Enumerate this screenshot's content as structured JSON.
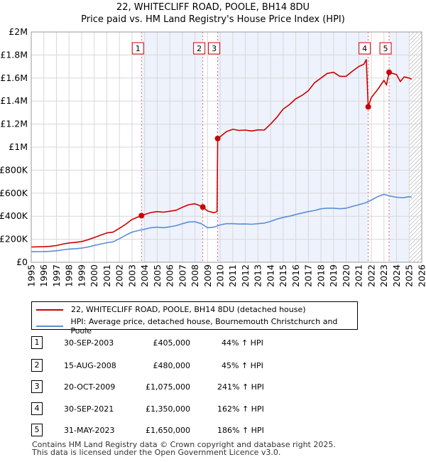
{
  "chart_data": {
    "type": "line",
    "title": "22, WHITECLIFF ROAD, POOLE, BH14 8DU",
    "subtitle": "Price paid vs. HM Land Registry's House Price Index (HPI)",
    "xlim": [
      1995,
      2026
    ],
    "ylim": [
      0,
      2000000
    ],
    "y_ticks": [
      0,
      200000,
      400000,
      600000,
      800000,
      1000000,
      1200000,
      1400000,
      1600000,
      1800000,
      2000000
    ],
    "y_tick_labels": [
      "£0",
      "£200K",
      "£400K",
      "£600K",
      "£800K",
      "£1M",
      "£1.2M",
      "£1.4M",
      "£1.6M",
      "£1.8M",
      "£2M"
    ],
    "x_ticks": [
      1995,
      1996,
      1997,
      1998,
      1999,
      2000,
      2001,
      2002,
      2003,
      2004,
      2005,
      2006,
      2007,
      2008,
      2009,
      2010,
      2011,
      2012,
      2013,
      2014,
      2015,
      2016,
      2017,
      2018,
      2019,
      2020,
      2021,
      2022,
      2023,
      2024,
      2025,
      2026
    ],
    "x_tick_labels": [
      "1995",
      "1996",
      "1997",
      "1998",
      "1999",
      "2000",
      "2001",
      "2002",
      "2003",
      "2004",
      "2005",
      "2006",
      "2007",
      "2008",
      "2009",
      "2010",
      "2011",
      "2012",
      "2013",
      "2014",
      "2015",
      "2016",
      "2017",
      "2018",
      "2019",
      "2020",
      "2021",
      "2022",
      "2023",
      "2024",
      "2025",
      "2026"
    ],
    "grid": true,
    "shaded_ranges": [
      [
        2003.75,
        2008.62
      ],
      [
        2009.8,
        2021.75
      ],
      [
        2023.41,
        2025.0
      ]
    ],
    "hatched_from": 2025.0,
    "series": [
      {
        "name": "22, WHITECLIFF ROAD, POOLE, BH14 8DU (detached house)",
        "color": "#cc0000",
        "points": [
          [
            1995.0,
            133000
          ],
          [
            1996.0,
            135000
          ],
          [
            1996.5,
            138000
          ],
          [
            1997.0,
            145000
          ],
          [
            1997.5,
            158000
          ],
          [
            1998.0,
            168000
          ],
          [
            1998.5,
            172000
          ],
          [
            1999.0,
            180000
          ],
          [
            1999.5,
            195000
          ],
          [
            2000.0,
            215000
          ],
          [
            2000.5,
            235000
          ],
          [
            2001.0,
            255000
          ],
          [
            2001.5,
            262000
          ],
          [
            2002.0,
            295000
          ],
          [
            2002.5,
            330000
          ],
          [
            2003.0,
            372000
          ],
          [
            2003.75,
            405000
          ],
          [
            2004.0,
            415000
          ],
          [
            2004.5,
            432000
          ],
          [
            2005.0,
            440000
          ],
          [
            2005.5,
            435000
          ],
          [
            2006.0,
            443000
          ],
          [
            2006.5,
            452000
          ],
          [
            2007.0,
            478000
          ],
          [
            2007.5,
            500000
          ],
          [
            2008.0,
            508000
          ],
          [
            2008.3,
            495000
          ],
          [
            2008.62,
            480000
          ],
          [
            2009.0,
            445000
          ],
          [
            2009.5,
            430000
          ],
          [
            2009.75,
            440000
          ],
          [
            2009.8,
            1075000
          ],
          [
            2010.0,
            1090000
          ],
          [
            2010.5,
            1135000
          ],
          [
            2011.0,
            1155000
          ],
          [
            2011.5,
            1145000
          ],
          [
            2012.0,
            1148000
          ],
          [
            2012.5,
            1140000
          ],
          [
            2013.0,
            1150000
          ],
          [
            2013.5,
            1148000
          ],
          [
            2014.0,
            1200000
          ],
          [
            2014.5,
            1260000
          ],
          [
            2015.0,
            1330000
          ],
          [
            2015.5,
            1370000
          ],
          [
            2016.0,
            1420000
          ],
          [
            2016.5,
            1450000
          ],
          [
            2017.0,
            1490000
          ],
          [
            2017.5,
            1560000
          ],
          [
            2018.0,
            1600000
          ],
          [
            2018.5,
            1640000
          ],
          [
            2019.0,
            1650000
          ],
          [
            2019.5,
            1615000
          ],
          [
            2020.0,
            1615000
          ],
          [
            2020.5,
            1660000
          ],
          [
            2021.0,
            1700000
          ],
          [
            2021.4,
            1720000
          ],
          [
            2021.6,
            1760000
          ],
          [
            2021.75,
            1350000
          ],
          [
            2022.0,
            1430000
          ],
          [
            2022.5,
            1500000
          ],
          [
            2023.0,
            1580000
          ],
          [
            2023.2,
            1540000
          ],
          [
            2023.41,
            1650000
          ],
          [
            2023.7,
            1640000
          ],
          [
            2024.0,
            1630000
          ],
          [
            2024.3,
            1570000
          ],
          [
            2024.6,
            1610000
          ],
          [
            2025.0,
            1600000
          ],
          [
            2025.2,
            1590000
          ]
        ]
      },
      {
        "name": "HPI: Average price, detached house, Bournemouth Christchurch and Poole",
        "color": "#5b8dd6",
        "points": [
          [
            1995.0,
            92000
          ],
          [
            1996.0,
            93000
          ],
          [
            1996.5,
            95000
          ],
          [
            1997.0,
            100000
          ],
          [
            1997.5,
            108000
          ],
          [
            1998.0,
            115000
          ],
          [
            1998.5,
            118000
          ],
          [
            1999.0,
            123000
          ],
          [
            1999.5,
            132000
          ],
          [
            2000.0,
            146000
          ],
          [
            2000.5,
            158000
          ],
          [
            2001.0,
            170000
          ],
          [
            2001.5,
            178000
          ],
          [
            2002.0,
            205000
          ],
          [
            2002.5,
            235000
          ],
          [
            2003.0,
            262000
          ],
          [
            2003.5,
            275000
          ],
          [
            2004.0,
            287000
          ],
          [
            2004.5,
            300000
          ],
          [
            2005.0,
            305000
          ],
          [
            2005.5,
            300000
          ],
          [
            2006.0,
            308000
          ],
          [
            2006.5,
            318000
          ],
          [
            2007.0,
            335000
          ],
          [
            2007.5,
            350000
          ],
          [
            2008.0,
            352000
          ],
          [
            2008.5,
            335000
          ],
          [
            2009.0,
            300000
          ],
          [
            2009.5,
            305000
          ],
          [
            2010.0,
            325000
          ],
          [
            2010.5,
            335000
          ],
          [
            2011.0,
            335000
          ],
          [
            2011.5,
            332000
          ],
          [
            2012.0,
            333000
          ],
          [
            2012.5,
            330000
          ],
          [
            2013.0,
            335000
          ],
          [
            2013.5,
            340000
          ],
          [
            2014.0,
            355000
          ],
          [
            2014.5,
            375000
          ],
          [
            2015.0,
            390000
          ],
          [
            2015.5,
            400000
          ],
          [
            2016.0,
            415000
          ],
          [
            2016.5,
            428000
          ],
          [
            2017.0,
            440000
          ],
          [
            2017.5,
            450000
          ],
          [
            2018.0,
            465000
          ],
          [
            2018.5,
            470000
          ],
          [
            2019.0,
            470000
          ],
          [
            2019.5,
            465000
          ],
          [
            2020.0,
            470000
          ],
          [
            2020.5,
            485000
          ],
          [
            2021.0,
            500000
          ],
          [
            2021.5,
            515000
          ],
          [
            2022.0,
            540000
          ],
          [
            2022.5,
            570000
          ],
          [
            2023.0,
            590000
          ],
          [
            2023.5,
            575000
          ],
          [
            2024.0,
            565000
          ],
          [
            2024.5,
            560000
          ],
          [
            2025.0,
            570000
          ],
          [
            2025.2,
            565000
          ]
        ]
      }
    ],
    "markers": [
      {
        "label": "1",
        "x": 2003.75,
        "y": 405000
      },
      {
        "label": "2",
        "x": 2008.62,
        "y": 480000
      },
      {
        "label": "3",
        "x": 2009.8,
        "y": 1075000
      },
      {
        "label": "4",
        "x": 2021.75,
        "y": 1350000
      },
      {
        "label": "5",
        "x": 2023.41,
        "y": 1650000
      }
    ],
    "legend_position": "below"
  },
  "legend": {
    "red_label": "22, WHITECLIFF ROAD, POOLE, BH14 8DU (detached house)",
    "blue_label": "HPI: Average price, detached house, Bournemouth Christchurch and Poole"
  },
  "transactions": [
    {
      "num": "1",
      "date": "30-SEP-2003",
      "price": "£405,000",
      "hpi": "44% ↑ HPI"
    },
    {
      "num": "2",
      "date": "15-AUG-2008",
      "price": "£480,000",
      "hpi": "45% ↑ HPI"
    },
    {
      "num": "3",
      "date": "20-OCT-2009",
      "price": "£1,075,000",
      "hpi": "241% ↑ HPI"
    },
    {
      "num": "4",
      "date": "30-SEP-2021",
      "price": "£1,350,000",
      "hpi": "162% ↑ HPI"
    },
    {
      "num": "5",
      "date": "31-MAY-2023",
      "price": "£1,650,000",
      "hpi": "186% ↑ HPI"
    }
  ],
  "footer": {
    "line1": "Contains HM Land Registry data © Crown copyright and database right 2025.",
    "line2": "This data is licensed under the Open Government Licence v3.0."
  }
}
